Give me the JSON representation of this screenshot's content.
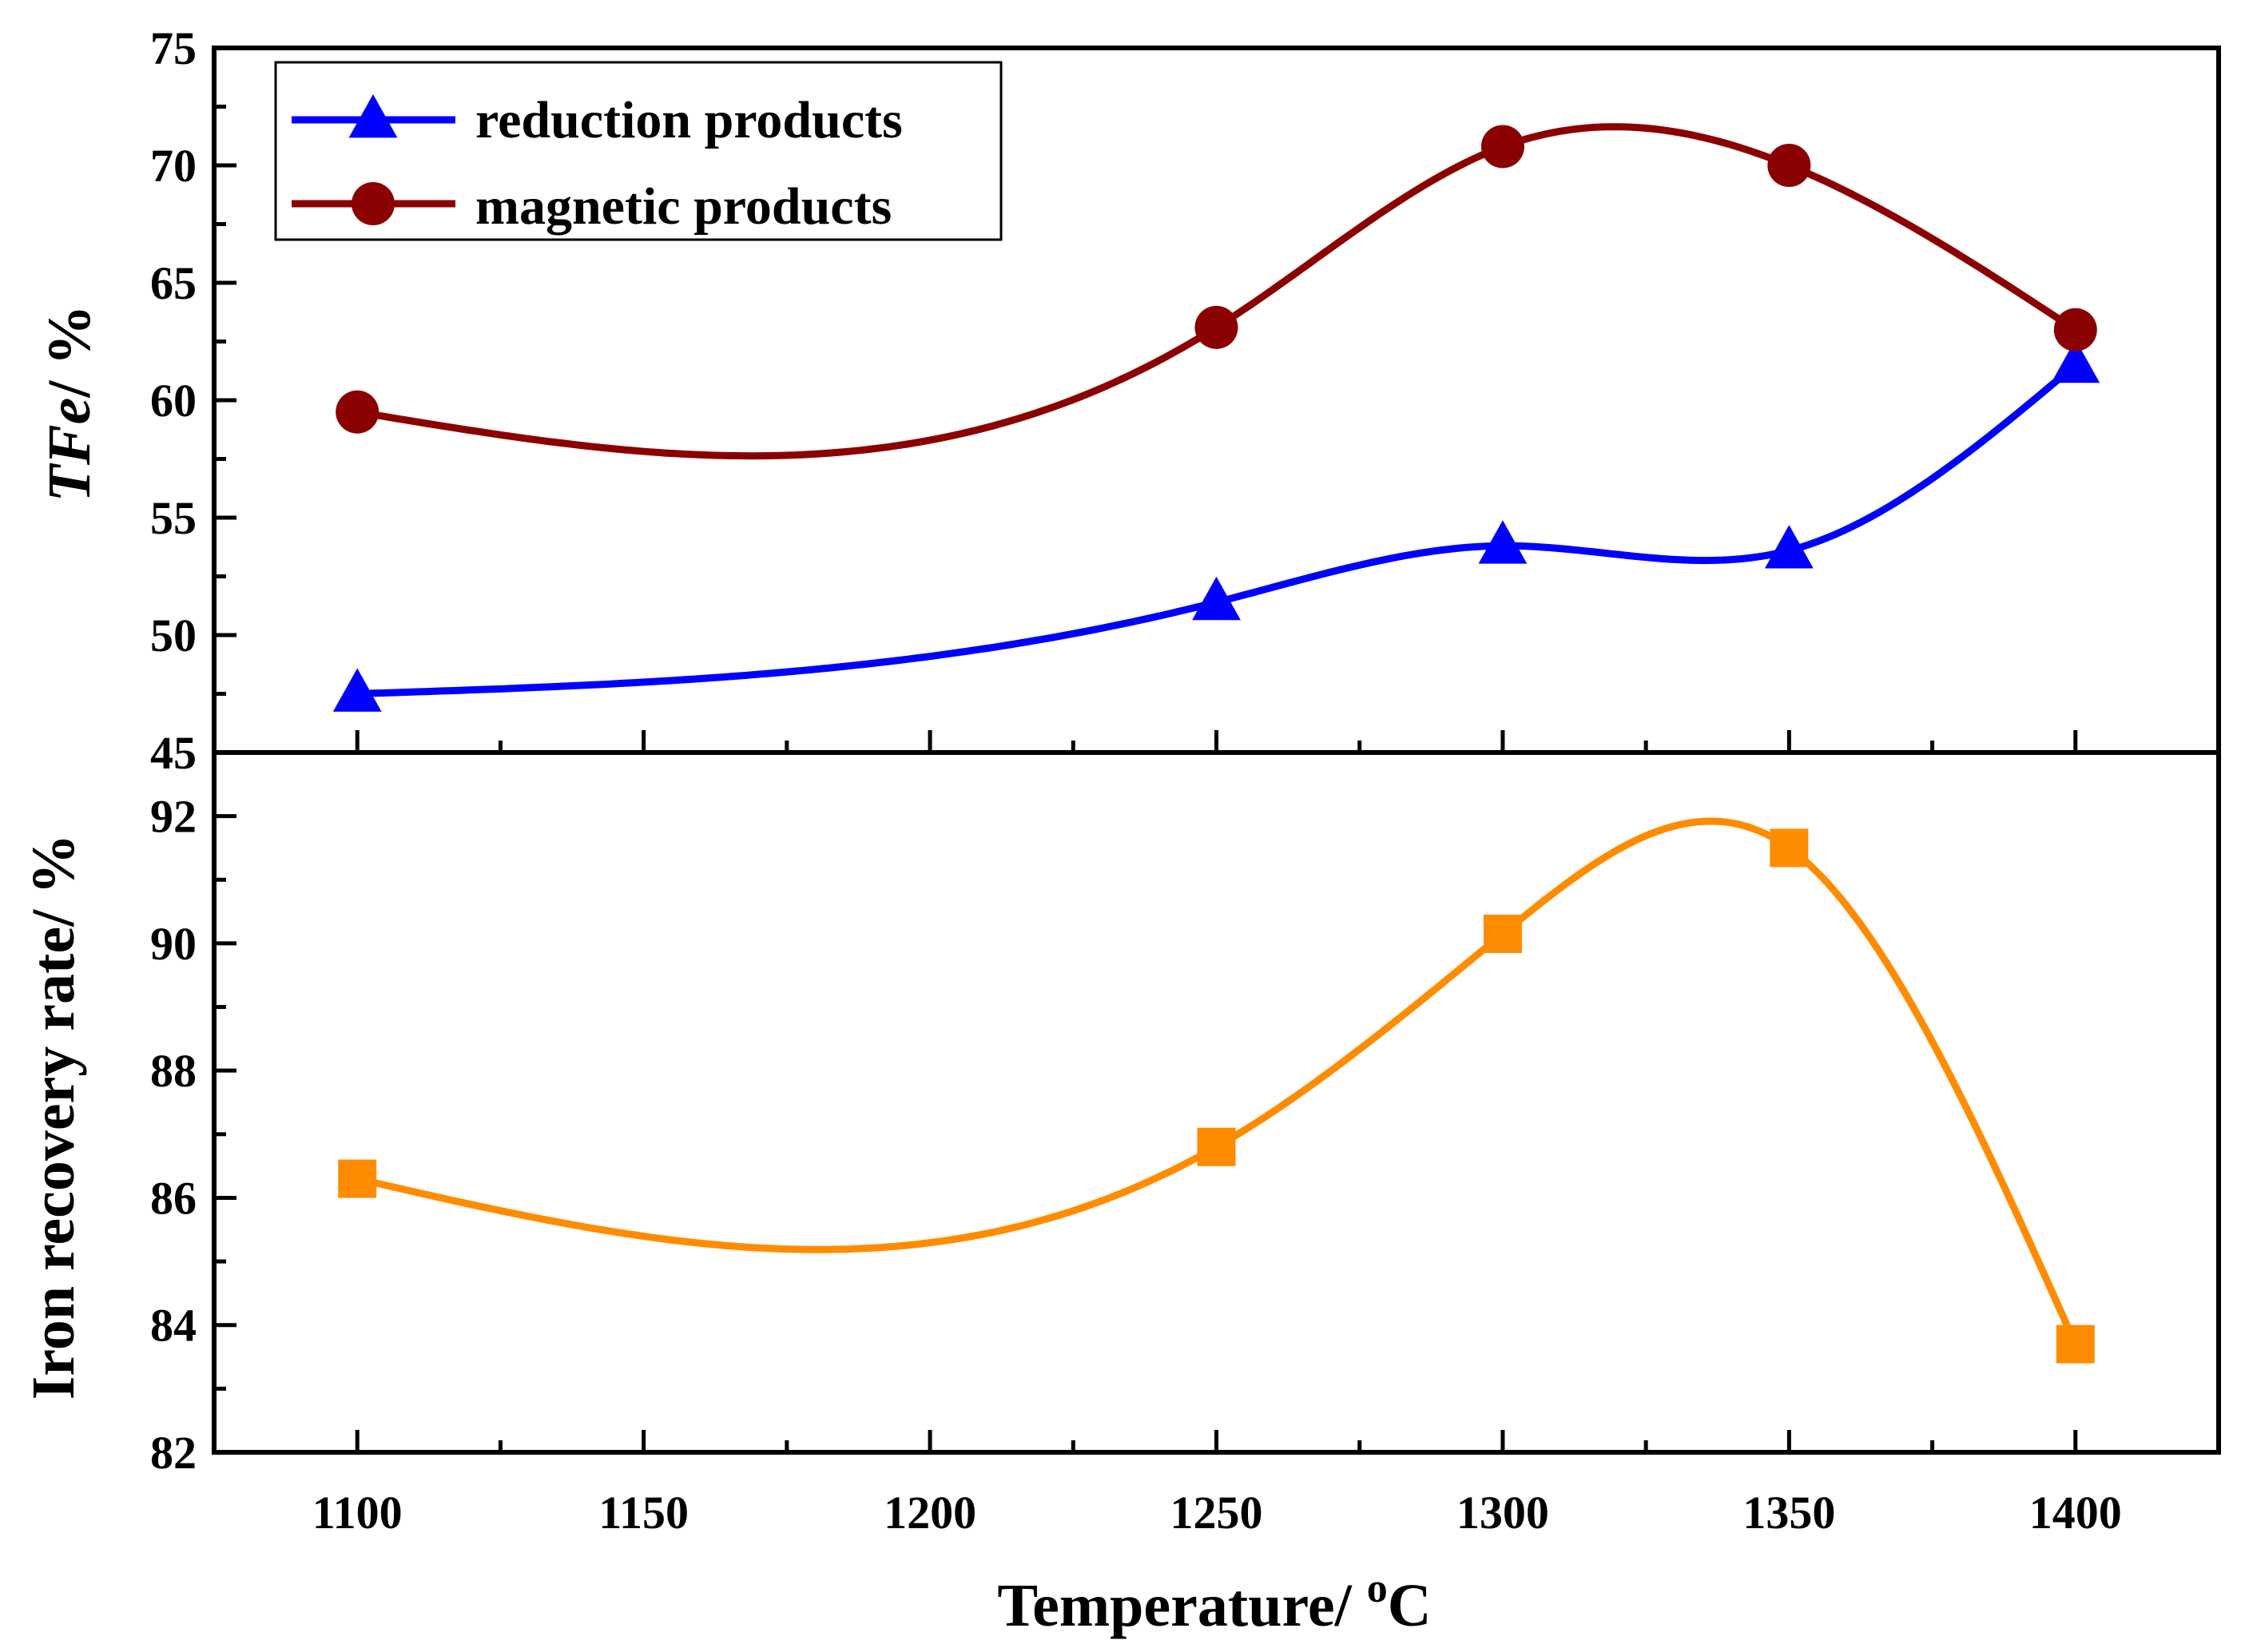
{
  "chart_data": [
    {
      "type": "line",
      "panel": "top",
      "xlabel": "Temperature/ °C",
      "xlabel_parts": {
        "main": "Temperature/ ",
        "sup": "o",
        "unit": "C"
      },
      "ylabel": "TFe/ %",
      "ylabel_parts": {
        "italic": "TFe",
        "rest": "/ %"
      },
      "xlim": [
        1075,
        1425
      ],
      "ylim": [
        45,
        75
      ],
      "x_ticks": [
        1100,
        1150,
        1200,
        1250,
        1300,
        1350,
        1400
      ],
      "y_ticks": [
        45,
        50,
        55,
        60,
        65,
        70,
        75
      ],
      "grid": false,
      "legend_position": "top-left",
      "series": [
        {
          "name": "reduction products",
          "marker": "triangle",
          "color": "#0000FF",
          "x": [
            1100,
            1250,
            1300,
            1350,
            1400
          ],
          "y": [
            47.5,
            51.4,
            53.8,
            53.6,
            61.5
          ]
        },
        {
          "name": "magnetic products",
          "marker": "circle",
          "color": "#8B0000",
          "x": [
            1100,
            1250,
            1300,
            1350,
            1400
          ],
          "y": [
            59.5,
            63.1,
            70.8,
            70.0,
            63.0
          ]
        }
      ]
    },
    {
      "type": "scatter",
      "panel": "bottom",
      "xlabel": "Temperature/ °C",
      "ylabel": "Iron recovery rate/ %",
      "xlim": [
        1075,
        1425
      ],
      "ylim": [
        82,
        93
      ],
      "x_ticks": [
        1100,
        1150,
        1200,
        1250,
        1300,
        1350,
        1400
      ],
      "x_tick_labels": [
        "1100",
        "1150",
        "1200",
        "1250",
        "1300",
        "1350",
        "1400"
      ],
      "y_ticks": [
        82,
        84,
        86,
        88,
        90,
        92
      ],
      "grid": false,
      "series": [
        {
          "marker": "square",
          "color": "#FF8C00",
          "x": [
            1100,
            1250,
            1300,
            1350,
            1400
          ],
          "y": [
            86.3,
            86.8,
            90.15,
            91.5,
            83.7
          ]
        }
      ]
    }
  ]
}
